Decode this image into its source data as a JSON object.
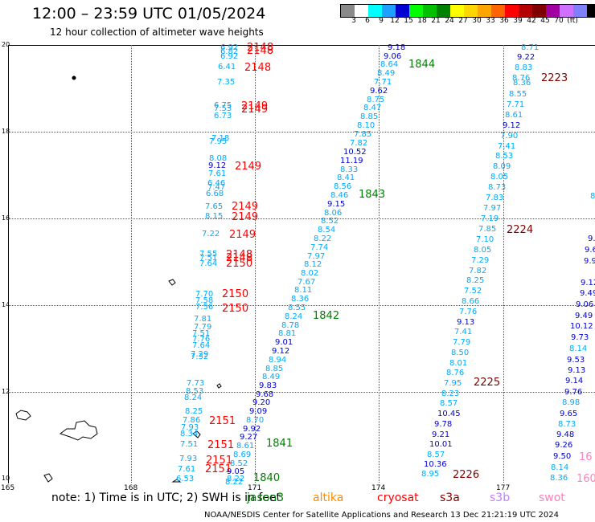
{
  "title": "12:00 – 23:59 UTC 01/05/2024",
  "subtitle": "12 hour collection of altimeter wave heights",
  "colorbar": {
    "colors": [
      "#8a8a8a",
      "#ffffff",
      "#00ffff",
      "#1ea0ff",
      "#0000d0",
      "#00ff00",
      "#00c000",
      "#008000",
      "#ffff00",
      "#ffd700",
      "#ffa500",
      "#ff6400",
      "#ff0000",
      "#b40000",
      "#800000",
      "#a000a0",
      "#d070ff",
      "#8080ff",
      "#000000"
    ],
    "labels": [
      "3",
      "6",
      "9",
      "12",
      "15",
      "18",
      "21",
      "24",
      "27",
      "30",
      "33",
      "36",
      "39",
      "42",
      "45",
      "70",
      "(ft)"
    ]
  },
  "axes": {
    "lat_labels": [
      "20",
      "18",
      "16",
      "14",
      "12",
      "10"
    ],
    "lon_labels": [
      "165",
      "168",
      "171",
      "174",
      "177"
    ]
  },
  "note": "note: 1) Time is in UTC; 2) SWH is in feet",
  "satellites": [
    {
      "name": "jason3",
      "color": "#008000"
    },
    {
      "name": "altika",
      "color": "#ff8c00"
    },
    {
      "name": "cryosat",
      "color": "#ff0000"
    },
    {
      "name": "s3a",
      "color": "#800000"
    },
    {
      "name": "s3b",
      "color": "#c080ff"
    },
    {
      "name": "swot",
      "color": "#ff80c0"
    }
  ],
  "footer": "NOAA/NESDIS Center for Satellite Applications and Research    13 Dec 21:21:19 UTC 2024",
  "colors": {
    "light": "#00aaff",
    "dark": "#0000d0",
    "jason3": "#008000",
    "cryosat": "#ff0000",
    "s3a": "#800000",
    "swot": "#ff80c0",
    "s3b": "#c080ff"
  },
  "track1_values": [
    "6.92",
    "6.82",
    "6.92",
    "6.41",
    "7.35",
    "6.75",
    "7.53",
    "6.73",
    "7.18",
    "7.95",
    "8.08",
    "9.12",
    "7.61",
    "6.46",
    "7.47",
    "6.68",
    "7.65",
    "8.15",
    "7.22",
    "7.55",
    "7.51",
    "7.64",
    "7.70",
    "7.58",
    "7.56",
    "7.81",
    "7.79",
    "7.51",
    "7.76",
    "7.64",
    "7.29",
    "7.32",
    "7.73",
    "8.53",
    "8.24",
    "8.25",
    "7.86",
    "7.93",
    "8.34",
    "7.51",
    "7.93",
    "7.61",
    "6.53",
    "8.22"
  ],
  "track1_times": [
    "2148",
    "2148",
    "2148",
    "2149",
    "2149",
    "2149",
    "2149",
    "2149",
    "2149",
    "2148",
    "2148",
    "2150",
    "2150",
    "2150",
    "2151",
    "2151",
    "2151",
    "2151"
  ],
  "track2_values": [
    "9.18",
    "9.06",
    "8.64",
    "8.49",
    "7.71",
    "9.62",
    "8.75",
    "8.47",
    "8.85",
    "8.10",
    "7.85",
    "7.82",
    "10.52",
    "11.19",
    "8.33",
    "8.41",
    "8.56",
    "8.46",
    "9.15",
    "8.06",
    "8.52",
    "8.54",
    "8.22",
    "7.74",
    "7.97",
    "8.12",
    "8.02",
    "7.67",
    "8.11",
    "8.36",
    "8.55",
    "8.24",
    "8.78",
    "8.81",
    "9.01",
    "9.12",
    "8.94",
    "8.85",
    "8.49",
    "9.83",
    "9.68",
    "9.20",
    "9.09",
    "8.70",
    "9.92",
    "9.27",
    "8.61",
    "8.69",
    "8.52",
    "9.05",
    "8.22"
  ],
  "track2_times": [
    "1844",
    "1843",
    "1842",
    "1841",
    "1840"
  ],
  "track3_values": [
    "8.71",
    "9.22",
    "8.83",
    "8.76",
    "8.36",
    "8.55",
    "7.71",
    "8.61",
    "9.12",
    "7.90",
    "7.41",
    "8.53",
    "8.09",
    "8.05",
    "8.73",
    "7.83",
    "7.97",
    "7.19",
    "7.85",
    "7.10",
    "8.05",
    "7.29",
    "7.82",
    "8.25",
    "7.52",
    "8.66",
    "7.76",
    "9.13",
    "7.41",
    "7.79",
    "8.50",
    "8.01",
    "8.76",
    "7.95",
    "8.23",
    "8.57",
    "10.45",
    "9.78",
    "9.21",
    "10.01",
    "8.57",
    "10.36",
    "8.95"
  ],
  "track3_times": [
    "2223",
    "2224",
    "2225",
    "2226"
  ],
  "track4_values": [
    "8",
    "9.",
    "9.6",
    "9.9",
    "9.12",
    "9.49",
    "9.06",
    "9.49",
    "10.12",
    "9.73",
    "8.14",
    "9.53",
    "9.13",
    "9.14",
    "9.76",
    "8.98",
    "9.65",
    "8.73",
    "9.48",
    "9.26",
    "9.50",
    "8.14",
    "8.36"
  ],
  "track4_times": [
    "16",
    "160"
  ]
}
